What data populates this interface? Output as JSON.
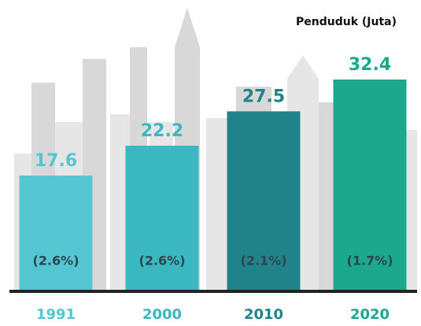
{
  "chart_data": {
    "type": "bar",
    "title": "Penduduk (Juta)",
    "categories": [
      "1991",
      "2000",
      "2010",
      "2020"
    ],
    "values": [
      17.6,
      22.2,
      27.5,
      32.4
    ],
    "growth_labels": [
      "(2.6%)",
      "(2.6%)",
      "(2.1%)",
      "(1.7%)"
    ],
    "colors": [
      "#54c6d2",
      "#3bb7c0",
      "#21838a",
      "#1ba88c"
    ]
  }
}
